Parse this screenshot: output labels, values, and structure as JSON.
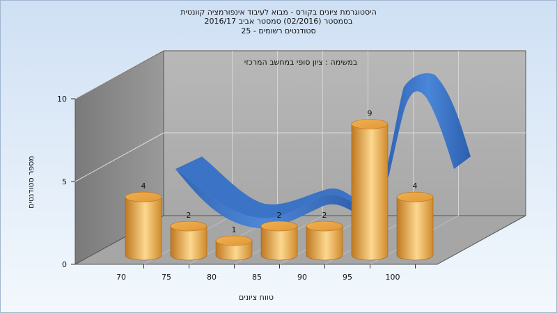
{
  "chart_data": {
    "type": "bar",
    "title_lines": [
      "היסטוגרמת ציונים בקורס - מבוא לעיבוד אינפורמציה קוונטית",
      "בסמסטר  (02/2016)  סמסטר אביב 2016/17",
      "סטודנטים רשומים - 25"
    ],
    "subtitle": "במשימה : ציון סופי במחשב המרכזי",
    "xlabel": "טווח ציונים",
    "ylabel": "מספר סטודנטים",
    "x_ticks": [
      "70",
      "75",
      "80",
      "85",
      "90",
      "95",
      "100"
    ],
    "y_ticks": [
      "0",
      "5",
      "10"
    ],
    "ylim": [
      0,
      10
    ],
    "values": [
      4,
      2,
      1,
      2,
      2,
      9,
      4
    ],
    "value_labels": [
      "4",
      "2",
      "1",
      "2",
      "2",
      "9",
      "4"
    ],
    "grid": true,
    "colors": {
      "bar": "#e8a040",
      "bar_light": "#fbd68a",
      "curve": "#3a74c8",
      "back_wall": "#b4b4b4",
      "side_wall": "#8c8c8c",
      "floor": "#a4a4a4"
    }
  }
}
